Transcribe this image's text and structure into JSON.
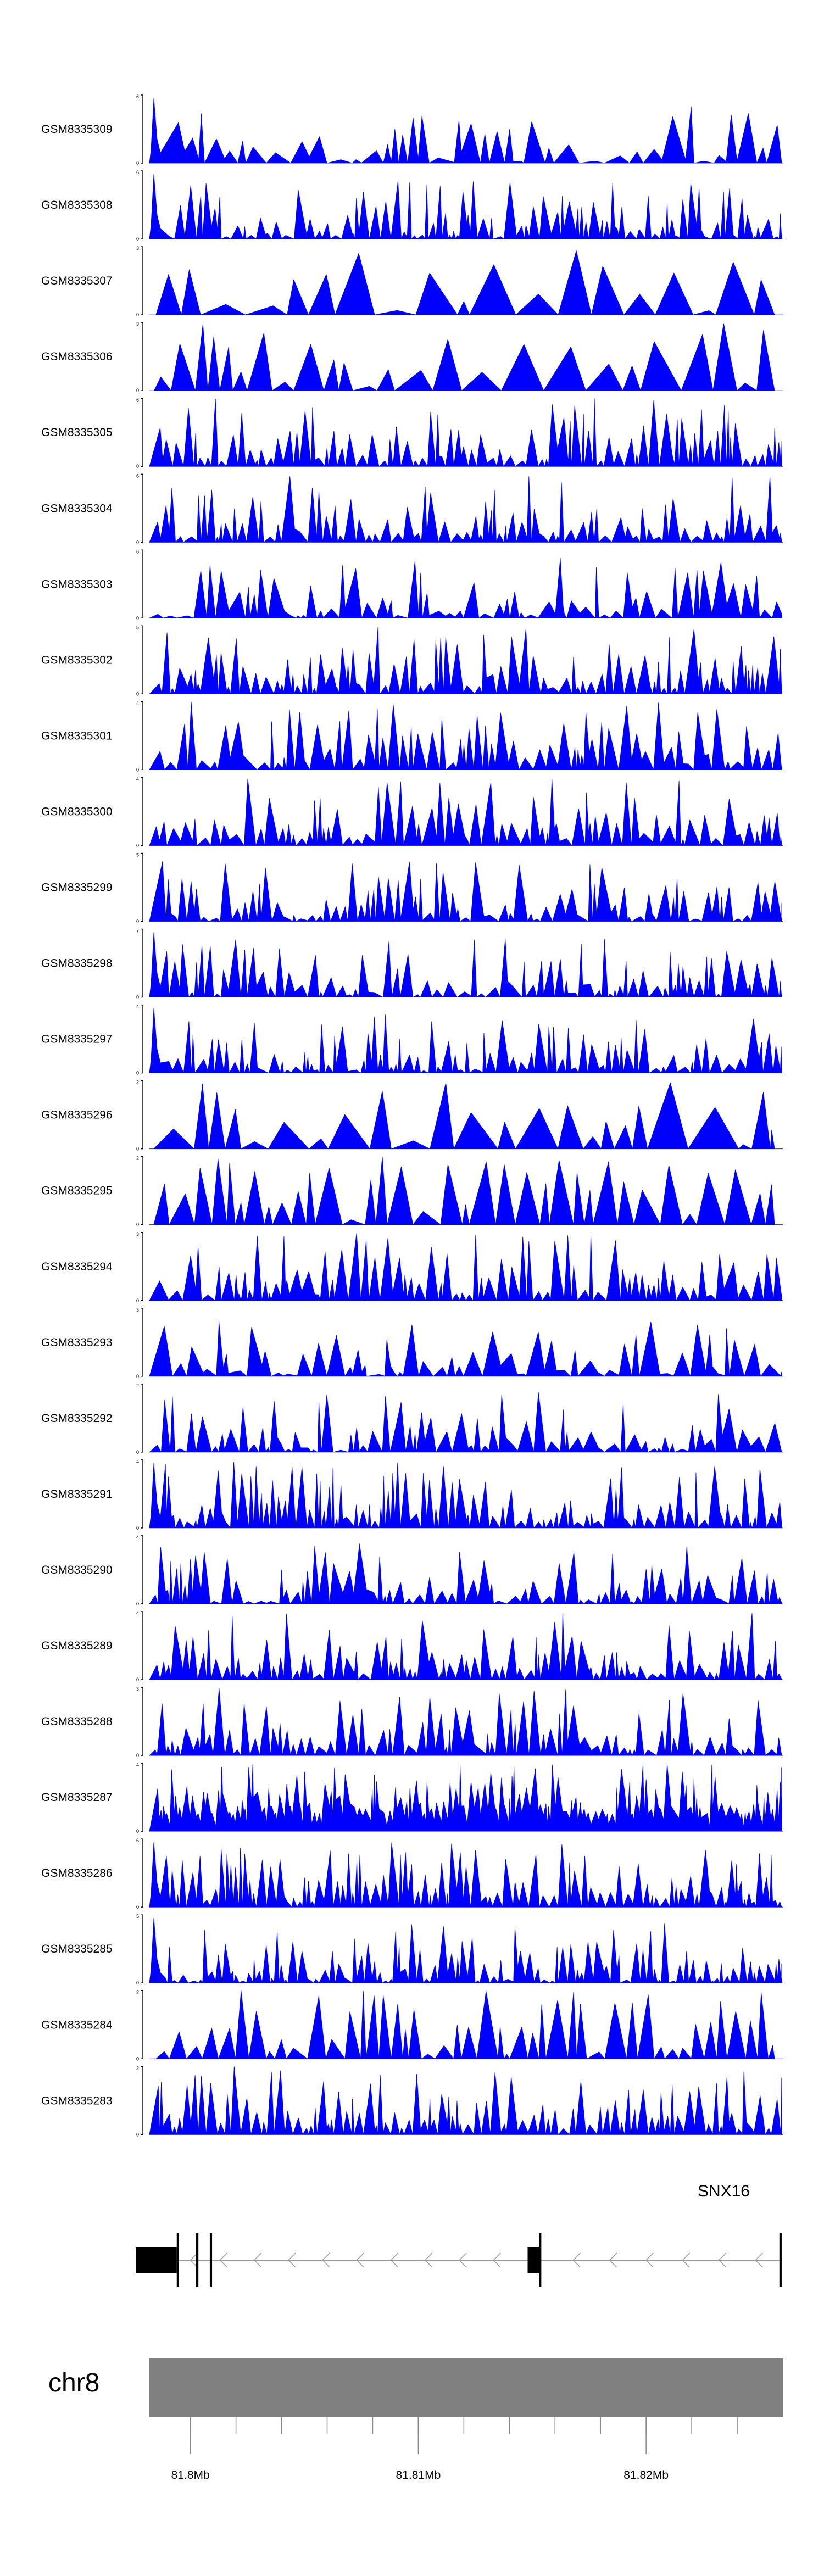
{
  "chart_data": {
    "type": "area",
    "title": "",
    "color": "#0000ff",
    "tracks": [
      {
        "name": "GSM8335309",
        "ymax": "6",
        "ymin": "0",
        "seed": 1101,
        "nspan": 40,
        "style": "mid",
        "spike": 0.05
      },
      {
        "name": "GSM8335308",
        "ymax": "6",
        "ymin": "0",
        "seed": 1202,
        "nspan": 80,
        "style": "mid",
        "spike": 0.03
      },
      {
        "name": "GSM8335307",
        "ymax": "3",
        "ymin": "0",
        "seed": 1303,
        "nspan": 22,
        "style": "sparse",
        "spike": 0.0
      },
      {
        "name": "GSM8335306",
        "ymax": "3",
        "ymin": "0",
        "seed": 1404,
        "nspan": 24,
        "style": "sparse",
        "spike": 0.0
      },
      {
        "name": "GSM8335305",
        "ymax": "6",
        "ymin": "0",
        "seed": 1505,
        "nspan": 82,
        "style": "dense",
        "spike": 0.0
      },
      {
        "name": "GSM8335304",
        "ymax": "6",
        "ymin": "0",
        "seed": 1606,
        "nspan": 75,
        "style": "dense",
        "spike": 0.0
      },
      {
        "name": "GSM8335303",
        "ymax": "6",
        "ymin": "0",
        "seed": 1707,
        "nspan": 60,
        "style": "mid",
        "spike": 0.0
      },
      {
        "name": "GSM8335302",
        "ymax": "5",
        "ymin": "0",
        "seed": 1808,
        "nspan": 75,
        "style": "dense",
        "spike": 0.0
      },
      {
        "name": "GSM8335301",
        "ymax": "4",
        "ymin": "0",
        "seed": 1909,
        "nspan": 72,
        "style": "dense",
        "spike": 0.0
      },
      {
        "name": "GSM8335300",
        "ymax": "4",
        "ymin": "0",
        "seed": 2010,
        "nspan": 66,
        "style": "dense",
        "spike": 0.0
      },
      {
        "name": "GSM8335299",
        "ymax": "5",
        "ymin": "0",
        "seed": 2111,
        "nspan": 70,
        "style": "mid",
        "spike": 0.0
      },
      {
        "name": "GSM8335298",
        "ymax": "7",
        "ymin": "0",
        "seed": 2212,
        "nspan": 70,
        "style": "mid",
        "spike": 0.03
      },
      {
        "name": "GSM8335297",
        "ymax": "4",
        "ymin": "0",
        "seed": 2313,
        "nspan": 76,
        "style": "mid",
        "spike": 0.03
      },
      {
        "name": "GSM8335296",
        "ymax": "2",
        "ymin": "0",
        "seed": 2414,
        "nspan": 20,
        "style": "sparse",
        "spike": 0.0
      },
      {
        "name": "GSM8335295",
        "ymax": "2",
        "ymin": "0",
        "seed": 2515,
        "nspan": 36,
        "style": "sparse",
        "spike": 0.0
      },
      {
        "name": "GSM8335294",
        "ymax": "3",
        "ymin": "0",
        "seed": 2616,
        "nspan": 72,
        "style": "dense",
        "spike": 0.0
      },
      {
        "name": "GSM8335293",
        "ymax": "3",
        "ymin": "0",
        "seed": 2717,
        "nspan": 50,
        "style": "mid",
        "spike": 0.0
      },
      {
        "name": "GSM8335292",
        "ymax": "2",
        "ymin": "0",
        "seed": 2818,
        "nspan": 62,
        "style": "mid",
        "spike": 0.0
      },
      {
        "name": "GSM8335291",
        "ymax": "4",
        "ymin": "0",
        "seed": 2919,
        "nspan": 90,
        "style": "dense",
        "spike": 0.03
      },
      {
        "name": "GSM8335290",
        "ymax": "4",
        "ymin": "0",
        "seed": 3020,
        "nspan": 76,
        "style": "mid",
        "spike": 0.0
      },
      {
        "name": "GSM8335289",
        "ymax": "4",
        "ymin": "0",
        "seed": 3121,
        "nspan": 82,
        "style": "dense",
        "spike": 0.0
      },
      {
        "name": "GSM8335288",
        "ymax": "3",
        "ymin": "0",
        "seed": 3222,
        "nspan": 80,
        "style": "dense",
        "spike": 0.0
      },
      {
        "name": "GSM8335287",
        "ymax": "4",
        "ymin": "0",
        "seed": 3323,
        "nspan": 120,
        "style": "full",
        "spike": 0.0
      },
      {
        "name": "GSM8335286",
        "ymax": "6",
        "ymin": "0",
        "seed": 3424,
        "nspan": 95,
        "style": "dense",
        "spike": 0.03
      },
      {
        "name": "GSM8335285",
        "ymax": "5",
        "ymin": "0",
        "seed": 3525,
        "nspan": 95,
        "style": "mid",
        "spike": 0.03
      },
      {
        "name": "GSM8335284",
        "ymax": "2",
        "ymin": "0",
        "seed": 3626,
        "nspan": 46,
        "style": "sparse",
        "spike": 0.0
      },
      {
        "name": "GSM8335283",
        "ymax": "2",
        "ymin": "0",
        "seed": 3727,
        "nspan": 90,
        "style": "dense",
        "spike": 0.0
      }
    ],
    "gene": {
      "name": "SNX16",
      "strand": "-",
      "exons": [
        {
          "start": 81797600,
          "end": 81799400,
          "type": "utr"
        },
        {
          "start": 81799400,
          "end": 81799500,
          "type": "cds"
        },
        {
          "start": 81800250,
          "end": 81800350,
          "type": "cds"
        },
        {
          "start": 81800850,
          "end": 81800950,
          "type": "cds"
        },
        {
          "start": 81814800,
          "end": 81815300,
          "type": "utr"
        },
        {
          "start": 81815300,
          "end": 81815400,
          "type": "cds"
        },
        {
          "start": 81825850,
          "end": 81825950,
          "type": "cds"
        }
      ],
      "arrows_at": [
        81800000,
        81801300,
        81802800,
        81804300,
        81805800,
        81807300,
        81808800,
        81810300,
        81811800,
        81813300,
        81816800,
        81818400,
        81820000,
        81821600,
        81823200,
        81824800
      ]
    },
    "axis": {
      "chromosome": "chr8",
      "range": [
        81798200,
        81826000
      ],
      "ticks": [
        81800000,
        81802000,
        81804000,
        81806000,
        81808000,
        81810000,
        81812000,
        81814000,
        81816000,
        81818000,
        81820000,
        81822000,
        81824000
      ],
      "labels": [
        {
          "pos": 81800000,
          "text": "81.8Mb"
        },
        {
          "pos": 81810000,
          "text": "81.81Mb"
        },
        {
          "pos": 81820000,
          "text": "81.82Mb"
        }
      ]
    }
  }
}
